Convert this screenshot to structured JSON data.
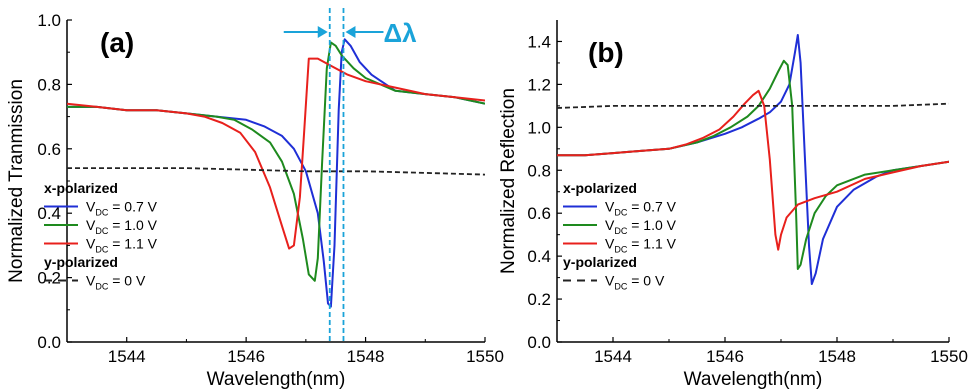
{
  "chart_data": [
    {
      "type": "line",
      "panel_label": "(a)",
      "xlabel": "Wavelength(nm)",
      "ylabel": "Normalized Tranmission",
      "xlim": [
        1543,
        1550
      ],
      "ylim": [
        0.0,
        1.0
      ],
      "xticks": [
        1544,
        1546,
        1548,
        1550
      ],
      "yticks": [
        0.0,
        0.2,
        0.4,
        0.6,
        0.8,
        1.0
      ],
      "ytick_labels": [
        "0.0",
        "0.2",
        "0.4",
        "0.6",
        "0.8",
        "1.0"
      ],
      "annotation": "Δλ",
      "annotation_color": "#1aa3d9",
      "marker_lines_x": [
        1547.4,
        1547.63
      ],
      "legend": {
        "x_group": "x-polarized",
        "y_group": "y-polarized",
        "entries": [
          {
            "prefix": "V",
            "sub": "DC",
            "suffix": " = 0.7 V",
            "color": "#1f2fd6",
            "dash": false
          },
          {
            "prefix": "V",
            "sub": "DC",
            "suffix": " = 1.0 V",
            "color": "#1e8a1e",
            "dash": false
          },
          {
            "prefix": "V",
            "sub": "DC",
            "suffix": " = 1.1 V",
            "color": "#e8201c",
            "dash": false
          },
          {
            "prefix": "V",
            "sub": "DC",
            "suffix": " = 0 V",
            "color": "#222222",
            "dash": true
          }
        ]
      },
      "series": [
        {
          "color": "#1f2fd6",
          "dash": false,
          "x": [
            1543,
            1543.5,
            1544,
            1544.5,
            1545,
            1545.5,
            1546,
            1546.3,
            1546.6,
            1546.8,
            1547.0,
            1547.2,
            1547.3,
            1547.37,
            1547.42,
            1547.48,
            1547.55,
            1547.6,
            1547.65,
            1547.75,
            1547.9,
            1548.1,
            1548.5,
            1549,
            1549.5,
            1550
          ],
          "y": [
            0.73,
            0.73,
            0.72,
            0.72,
            0.71,
            0.7,
            0.69,
            0.67,
            0.64,
            0.6,
            0.53,
            0.4,
            0.25,
            0.12,
            0.11,
            0.3,
            0.72,
            0.9,
            0.94,
            0.92,
            0.87,
            0.83,
            0.78,
            0.77,
            0.76,
            0.74
          ]
        },
        {
          "color": "#1e8a1e",
          "dash": false,
          "x": [
            1543,
            1543.5,
            1544,
            1544.5,
            1545,
            1545.5,
            1545.8,
            1546.1,
            1546.4,
            1546.6,
            1546.8,
            1546.95,
            1547.05,
            1547.15,
            1547.2,
            1547.27,
            1547.35,
            1547.42,
            1547.5,
            1547.6,
            1547.8,
            1548,
            1548.5,
            1549,
            1549.5,
            1550
          ],
          "y": [
            0.73,
            0.73,
            0.72,
            0.72,
            0.71,
            0.7,
            0.69,
            0.66,
            0.62,
            0.56,
            0.46,
            0.32,
            0.21,
            0.19,
            0.26,
            0.55,
            0.85,
            0.93,
            0.92,
            0.89,
            0.85,
            0.82,
            0.78,
            0.77,
            0.76,
            0.74
          ]
        },
        {
          "color": "#e8201c",
          "dash": false,
          "x": [
            1543,
            1543.5,
            1544,
            1544.5,
            1545,
            1545.3,
            1545.6,
            1545.9,
            1546.15,
            1546.4,
            1546.6,
            1546.72,
            1546.8,
            1546.9,
            1546.97,
            1547.05,
            1547.2,
            1547.4,
            1547.7,
            1548,
            1548.5,
            1549,
            1549.5,
            1550
          ],
          "y": [
            0.74,
            0.73,
            0.72,
            0.72,
            0.71,
            0.7,
            0.68,
            0.65,
            0.59,
            0.48,
            0.36,
            0.29,
            0.3,
            0.45,
            0.65,
            0.88,
            0.88,
            0.86,
            0.83,
            0.81,
            0.79,
            0.77,
            0.76,
            0.75
          ]
        },
        {
          "color": "#222222",
          "dash": true,
          "x": [
            1543,
            1544,
            1545,
            1546,
            1547,
            1548,
            1549,
            1550
          ],
          "y": [
            0.54,
            0.54,
            0.54,
            0.535,
            0.53,
            0.53,
            0.525,
            0.52
          ]
        }
      ]
    },
    {
      "type": "line",
      "panel_label": "(b)",
      "xlabel": "Wavelength(nm)",
      "ylabel": "Normalized Reflection",
      "xlim": [
        1543,
        1550
      ],
      "ylim": [
        0.0,
        1.5
      ],
      "xticks": [
        1544,
        1546,
        1548,
        1550
      ],
      "yticks": [
        0.0,
        0.2,
        0.4,
        0.6,
        0.8,
        1.0,
        1.2,
        1.4
      ],
      "ytick_labels": [
        "0.0",
        "0.2",
        "0.4",
        "0.6",
        "0.8",
        "1.0",
        "1.2",
        "1.4"
      ],
      "legend": {
        "x_group": "x-polarized",
        "y_group": "y-polarized",
        "entries": [
          {
            "prefix": "V",
            "sub": "DC",
            "suffix": " = 0.7 V",
            "color": "#1f2fd6",
            "dash": false
          },
          {
            "prefix": "V",
            "sub": "DC",
            "suffix": " = 1.0 V",
            "color": "#1e8a1e",
            "dash": false
          },
          {
            "prefix": "V",
            "sub": "DC",
            "suffix": " = 1.1 V",
            "color": "#e8201c",
            "dash": false
          },
          {
            "prefix": "V",
            "sub": "DC",
            "suffix": " = 0 V",
            "color": "#222222",
            "dash": true
          }
        ]
      },
      "series": [
        {
          "color": "#1f2fd6",
          "dash": false,
          "x": [
            1543,
            1543.5,
            1544,
            1544.5,
            1545,
            1545.5,
            1546,
            1546.3,
            1546.6,
            1546.8,
            1547.0,
            1547.15,
            1547.25,
            1547.3,
            1547.35,
            1547.42,
            1547.5,
            1547.55,
            1547.62,
            1547.75,
            1548,
            1548.3,
            1548.7,
            1549,
            1549.5,
            1550
          ],
          "y": [
            0.87,
            0.87,
            0.88,
            0.89,
            0.9,
            0.93,
            0.97,
            1.0,
            1.04,
            1.07,
            1.12,
            1.2,
            1.35,
            1.43,
            1.3,
            0.9,
            0.45,
            0.27,
            0.32,
            0.48,
            0.63,
            0.71,
            0.77,
            0.8,
            0.82,
            0.84
          ]
        },
        {
          "color": "#1e8a1e",
          "dash": false,
          "x": [
            1543,
            1543.5,
            1544,
            1544.5,
            1545,
            1545.5,
            1545.8,
            1546.1,
            1546.4,
            1546.6,
            1546.8,
            1546.95,
            1547.05,
            1547.12,
            1547.2,
            1547.27,
            1547.3,
            1547.35,
            1547.45,
            1547.6,
            1547.8,
            1548,
            1548.5,
            1549,
            1549.5,
            1550
          ],
          "y": [
            0.87,
            0.87,
            0.88,
            0.89,
            0.9,
            0.93,
            0.96,
            1.0,
            1.05,
            1.1,
            1.18,
            1.26,
            1.31,
            1.29,
            1.1,
            0.6,
            0.34,
            0.36,
            0.48,
            0.6,
            0.68,
            0.73,
            0.78,
            0.8,
            0.82,
            0.84
          ]
        },
        {
          "color": "#e8201c",
          "dash": false,
          "x": [
            1543,
            1543.5,
            1544,
            1544.5,
            1545,
            1545.3,
            1545.6,
            1545.9,
            1546.15,
            1546.35,
            1546.5,
            1546.6,
            1546.7,
            1546.8,
            1546.9,
            1546.95,
            1547.0,
            1547.1,
            1547.3,
            1547.6,
            1548,
            1548.5,
            1549,
            1549.5,
            1550
          ],
          "y": [
            0.87,
            0.87,
            0.88,
            0.89,
            0.9,
            0.92,
            0.95,
            0.99,
            1.05,
            1.11,
            1.15,
            1.17,
            1.1,
            0.85,
            0.5,
            0.43,
            0.5,
            0.58,
            0.64,
            0.67,
            0.7,
            0.76,
            0.79,
            0.82,
            0.84
          ]
        },
        {
          "color": "#222222",
          "dash": true,
          "x": [
            1543,
            1544,
            1545,
            1546,
            1547,
            1548,
            1549,
            1550
          ],
          "y": [
            1.09,
            1.1,
            1.1,
            1.1,
            1.1,
            1.1,
            1.1,
            1.11
          ]
        }
      ]
    }
  ]
}
